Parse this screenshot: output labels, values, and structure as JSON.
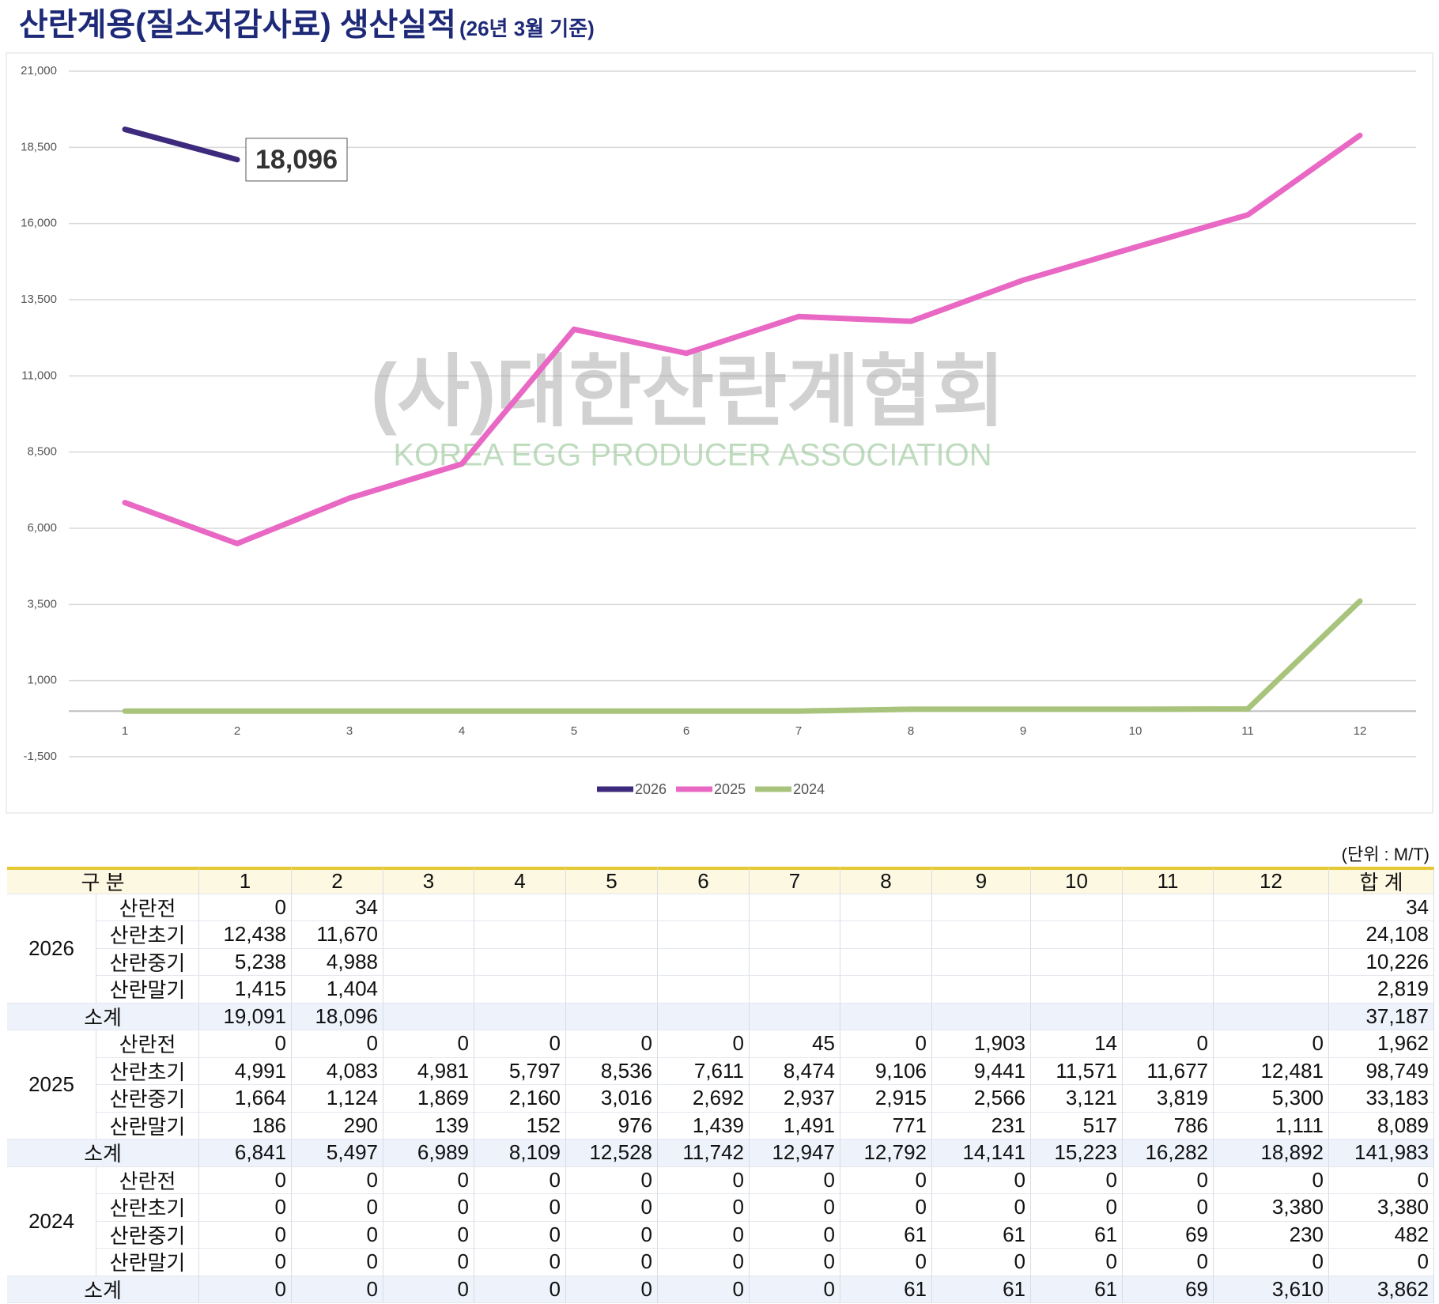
{
  "chart_data": {
    "type": "line",
    "title": "산란계용(질소저감사료) 생산실적",
    "subtitle": "(26년 3월 기준)",
    "watermark": [
      "(사)대한산란계협회",
      "KOREA EGG PRODUCER ASSOCIATION"
    ],
    "categories": [
      "1",
      "2",
      "3",
      "4",
      "5",
      "6",
      "7",
      "8",
      "9",
      "10",
      "11",
      "12"
    ],
    "series": [
      {
        "name": "2026",
        "color": "#3e2a7c",
        "values": [
          19091,
          18096,
          null,
          null,
          null,
          null,
          null,
          null,
          null,
          null,
          null,
          null
        ],
        "value_labels": [
          null,
          "18,096",
          null,
          null,
          null,
          null,
          null,
          null,
          null,
          null,
          null,
          null
        ]
      },
      {
        "name": "2025",
        "color": "#e868c4",
        "values": [
          6841,
          5497,
          6989,
          8109,
          12528,
          11742,
          12947,
          12792,
          14141,
          15223,
          16282,
          18892
        ]
      },
      {
        "name": "2024",
        "color": "#a8c47c",
        "values": [
          0,
          0,
          0,
          0,
          0,
          0,
          0,
          61,
          61,
          61,
          69,
          3610
        ]
      }
    ],
    "ylim": [
      -1500,
      21000
    ],
    "yticks": [
      {
        "value": -1500,
        "label": "-1,500"
      },
      {
        "value": 1000,
        "label": "1,000"
      },
      {
        "value": 3500,
        "label": "3,500"
      },
      {
        "value": 6000,
        "label": "6,000"
      },
      {
        "value": 8500,
        "label": "8,500"
      },
      {
        "value": 11000,
        "label": "11,000"
      },
      {
        "value": 13500,
        "label": "13,500"
      },
      {
        "value": 16000,
        "label": "16,000"
      },
      {
        "value": 18500,
        "label": "18,500"
      },
      {
        "value": 21000,
        "label": "21,000"
      }
    ],
    "grid": true,
    "legend": "bottom"
  },
  "table": {
    "unit": "(단위 : M/T)",
    "header": [
      "구 분",
      "1",
      "2",
      "3",
      "4",
      "5",
      "6",
      "7",
      "8",
      "9",
      "10",
      "11",
      "12",
      "합 계"
    ],
    "groups": [
      {
        "year": "2026",
        "rows": [
          {
            "label": "산란전",
            "cells": [
              "0",
              "34",
              null,
              null,
              null,
              null,
              null,
              null,
              null,
              null,
              null,
              null,
              "34"
            ]
          },
          {
            "label": "산란초기",
            "cells": [
              "12,438",
              "11,670",
              null,
              null,
              null,
              null,
              null,
              null,
              null,
              null,
              null,
              null,
              "24,108"
            ]
          },
          {
            "label": "산란중기",
            "cells": [
              "5,238",
              "4,988",
              null,
              null,
              null,
              null,
              null,
              null,
              null,
              null,
              null,
              null,
              "10,226"
            ]
          },
          {
            "label": "산란말기",
            "cells": [
              "1,415",
              "1,404",
              null,
              null,
              null,
              null,
              null,
              null,
              null,
              null,
              null,
              null,
              "2,819"
            ]
          }
        ],
        "subtotal": {
          "label": "소계",
          "cells": [
            "19,091",
            "18,096",
            null,
            null,
            null,
            null,
            null,
            null,
            null,
            null,
            null,
            null,
            "37,187"
          ]
        }
      },
      {
        "year": "2025",
        "rows": [
          {
            "label": "산란전",
            "cells": [
              "0",
              "0",
              "0",
              "0",
              "0",
              "0",
              "45",
              "0",
              "1,903",
              "14",
              "0",
              "0",
              "1,962"
            ]
          },
          {
            "label": "산란초기",
            "cells": [
              "4,991",
              "4,083",
              "4,981",
              "5,797",
              "8,536",
              "7,611",
              "8,474",
              "9,106",
              "9,441",
              "11,571",
              "11,677",
              "12,481",
              "98,749"
            ]
          },
          {
            "label": "산란중기",
            "cells": [
              "1,664",
              "1,124",
              "1,869",
              "2,160",
              "3,016",
              "2,692",
              "2,937",
              "2,915",
              "2,566",
              "3,121",
              "3,819",
              "5,300",
              "33,183"
            ]
          },
          {
            "label": "산란말기",
            "cells": [
              "186",
              "290",
              "139",
              "152",
              "976",
              "1,439",
              "1,491",
              "771",
              "231",
              "517",
              "786",
              "1,111",
              "8,089"
            ]
          }
        ],
        "subtotal": {
          "label": "소계",
          "cells": [
            "6,841",
            "5,497",
            "6,989",
            "8,109",
            "12,528",
            "11,742",
            "12,947",
            "12,792",
            "14,141",
            "15,223",
            "16,282",
            "18,892",
            "141,983"
          ]
        }
      },
      {
        "year": "2024",
        "rows": [
          {
            "label": "산란전",
            "cells": [
              "0",
              "0",
              "0",
              "0",
              "0",
              "0",
              "0",
              "0",
              "0",
              "0",
              "0",
              "0",
              "0"
            ]
          },
          {
            "label": "산란초기",
            "cells": [
              "0",
              "0",
              "0",
              "0",
              "0",
              "0",
              "0",
              "0",
              "0",
              "0",
              "0",
              "3,380",
              "3,380"
            ]
          },
          {
            "label": "산란중기",
            "cells": [
              "0",
              "0",
              "0",
              "0",
              "0",
              "0",
              "0",
              "61",
              "61",
              "61",
              "69",
              "230",
              "482"
            ]
          },
          {
            "label": "산란말기",
            "cells": [
              "0",
              "0",
              "0",
              "0",
              "0",
              "0",
              "0",
              "0",
              "0",
              "0",
              "0",
              "0",
              "0"
            ]
          }
        ],
        "subtotal": {
          "label": "소계",
          "cells": [
            "0",
            "0",
            "0",
            "0",
            "0",
            "0",
            "0",
            "61",
            "61",
            "61",
            "69",
            "3,610",
            "3,862"
          ]
        }
      }
    ]
  }
}
